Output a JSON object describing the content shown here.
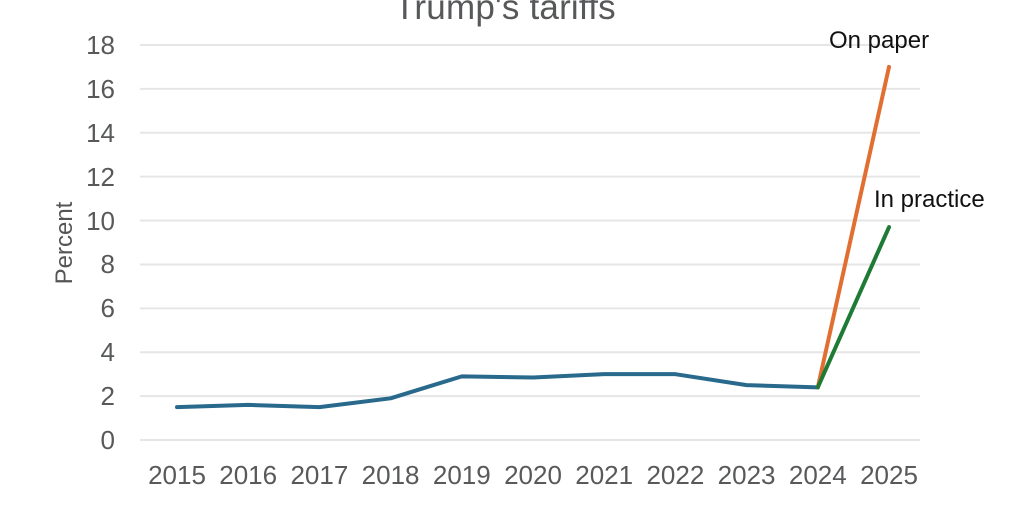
{
  "chart": {
    "title": "Trump's tariffs",
    "ylabel": "Percent"
  },
  "chart_data": {
    "type": "line",
    "title": "Trump's tariffs",
    "xlabel": "",
    "ylabel": "Percent",
    "x": [
      2015,
      2016,
      2017,
      2018,
      2019,
      2020,
      2021,
      2022,
      2023,
      2024,
      2025
    ],
    "ylim": [
      0,
      18
    ],
    "ytick_step": 2,
    "yticks": [
      0,
      2,
      4,
      6,
      8,
      10,
      12,
      14,
      16,
      18
    ],
    "grid": "horizontal",
    "legend_position": "end-of-line-labels",
    "series": [
      {
        "id": "historical",
        "color": "#28698c",
        "years": [
          2015,
          2016,
          2017,
          2018,
          2019,
          2020,
          2021,
          2022,
          2023,
          2024
        ],
        "values": [
          1.5,
          1.6,
          1.5,
          1.9,
          2.9,
          2.85,
          3.0,
          3.0,
          2.5,
          2.4
        ]
      },
      {
        "id": "on-paper",
        "name": "On paper",
        "color": "#e16f31",
        "years": [
          2024,
          2025
        ],
        "values": [
          2.4,
          17.0
        ]
      },
      {
        "id": "in-practice",
        "name": "In practice",
        "color": "#1e7a34",
        "years": [
          2024,
          2025
        ],
        "values": [
          2.4,
          9.7
        ]
      }
    ],
    "annotations": [
      {
        "text": "On paper",
        "color": "#111111"
      },
      {
        "text": "In practice",
        "color": "#111111"
      }
    ],
    "gridline_color": "#e6e6e6"
  }
}
